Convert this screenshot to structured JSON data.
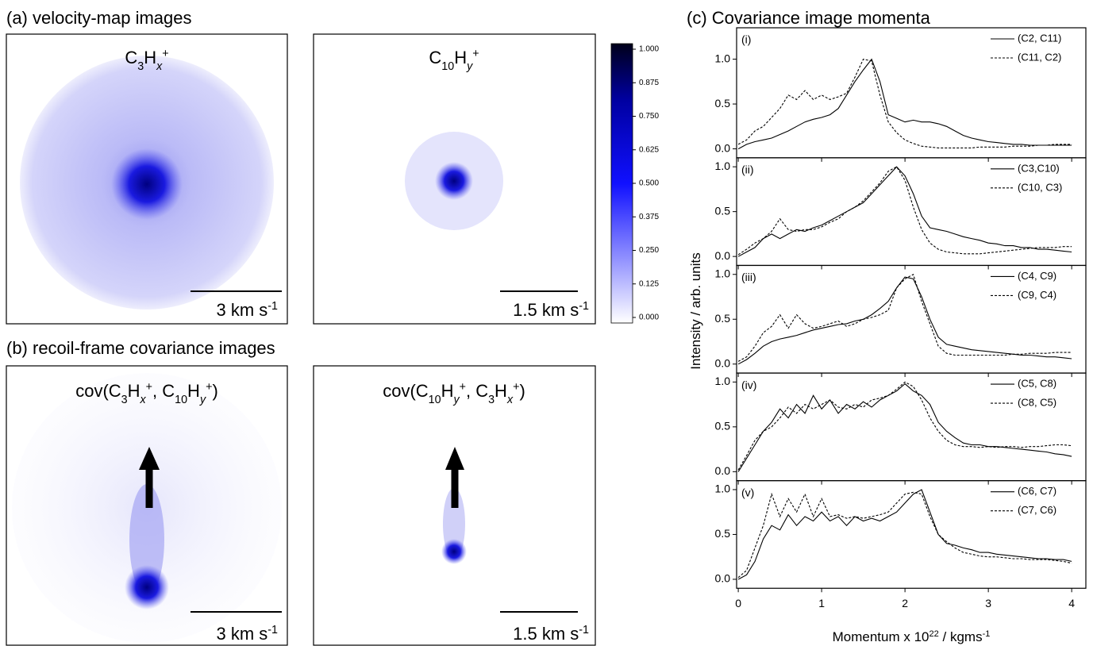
{
  "panel_a": {
    "title": "(a) velocity-map images",
    "images": [
      {
        "label": [
          "C",
          "3",
          "H",
          "x",
          "+"
        ],
        "scale_bar": [
          "3 km s",
          "-1"
        ]
      },
      {
        "label": [
          "C",
          "10",
          "H",
          "y",
          "+"
        ],
        "scale_bar": [
          "1.5 km s",
          "-1"
        ]
      }
    ]
  },
  "colorbar": {
    "lim": [
      0,
      1
    ],
    "ticks": [
      {
        "value": 0,
        "label": "0.000"
      },
      {
        "value": 0.125,
        "label": "0.125"
      },
      {
        "value": 0.25,
        "label": "0.250"
      },
      {
        "value": 0.375,
        "label": "0.375"
      },
      {
        "value": 0.5,
        "label": "0.500"
      },
      {
        "value": 0.625,
        "label": "0.625"
      },
      {
        "value": 0.75,
        "label": "0.750"
      },
      {
        "value": 0.875,
        "label": "0.875"
      },
      {
        "value": 1,
        "label": "1.000"
      }
    ]
  },
  "panel_b": {
    "title": "(b) recoil-frame covariance images",
    "images": [
      {
        "label": [
          "cov(C",
          "3",
          "H",
          "x",
          "+",
          ", C",
          "10",
          "H",
          "y",
          "+",
          ")"
        ],
        "scale_bar": [
          "3 km s",
          "-1"
        ]
      },
      {
        "label": [
          "cov(C",
          "10",
          "H",
          "y",
          "+",
          ", C",
          "3",
          "H",
          "x",
          "+",
          ")"
        ],
        "scale_bar": [
          "1.5 km s",
          "-1"
        ]
      }
    ]
  },
  "panel_c": {
    "title": "(c) Covariance image momenta",
    "ylabel": "Intensity / arb. units",
    "xlabel": [
      "Momentum x 10",
      "22",
      " / kgms",
      "-1"
    ]
  },
  "chart_data": [
    {
      "type": "line",
      "label": "(i)",
      "legend": "upper right",
      "xlim": [
        -0.02,
        4.17
      ],
      "ylim": [
        -0.1,
        1.35
      ],
      "xticks": [
        0,
        1,
        2,
        3,
        4
      ],
      "yticks": [
        {
          "value": 0,
          "label": "0.0"
        },
        {
          "value": 0.5,
          "label": "0.5"
        },
        {
          "value": 1,
          "label": "1.0"
        }
      ],
      "x": [
        0,
        0.1,
        0.2,
        0.3,
        0.4,
        0.5,
        0.6,
        0.7,
        0.8,
        0.9,
        1,
        1.1,
        1.2,
        1.3,
        1.4,
        1.5,
        1.6,
        1.7,
        1.8,
        1.9,
        2,
        2.1,
        2.2,
        2.3,
        2.4,
        2.5,
        2.6,
        2.7,
        2.8,
        2.9,
        3,
        3.1,
        3.2,
        3.3,
        3.4,
        3.5,
        3.6,
        3.7,
        3.8,
        3.9,
        4
      ],
      "series": [
        {
          "name": "(C2, C11)",
          "color": "#000000",
          "line_style": "solid",
          "values": [
            0,
            0.05,
            0.08,
            0.1,
            0.12,
            0.16,
            0.2,
            0.25,
            0.3,
            0.33,
            0.35,
            0.38,
            0.45,
            0.6,
            0.75,
            0.88,
            1,
            0.75,
            0.38,
            0.34,
            0.3,
            0.32,
            0.3,
            0.3,
            0.28,
            0.25,
            0.2,
            0.15,
            0.12,
            0.1,
            0.08,
            0.07,
            0.06,
            0.05,
            0.05,
            0.04,
            0.04,
            0.04,
            0.04,
            0.04,
            0.04
          ]
        },
        {
          "name": "(C11, C2)",
          "color": "#000000",
          "line_style": "dashed",
          "values": [
            0.05,
            0.1,
            0.2,
            0.25,
            0.35,
            0.45,
            0.6,
            0.55,
            0.65,
            0.55,
            0.6,
            0.55,
            0.58,
            0.62,
            0.8,
            1,
            0.98,
            0.6,
            0.3,
            0.18,
            0.1,
            0.06,
            0.03,
            0.02,
            0.01,
            0.01,
            0.01,
            0.01,
            0.01,
            0.02,
            0.02,
            0.02,
            0.02,
            0.03,
            0.03,
            0.03,
            0.04,
            0.04,
            0.05,
            0.05,
            0.05
          ]
        }
      ]
    },
    {
      "type": "line",
      "label": "(ii)",
      "legend": "upper right",
      "xlim": [
        -0.02,
        4.17
      ],
      "ylim": [
        -0.1,
        1.1
      ],
      "xticks": [
        0,
        1,
        2,
        3,
        4
      ],
      "yticks": [
        {
          "value": 0,
          "label": "0.0"
        },
        {
          "value": 0.5,
          "label": "0.5"
        },
        {
          "value": 1,
          "label": "1.0"
        }
      ],
      "x": [
        0,
        0.1,
        0.2,
        0.3,
        0.4,
        0.5,
        0.6,
        0.7,
        0.8,
        0.9,
        1,
        1.1,
        1.2,
        1.3,
        1.4,
        1.5,
        1.6,
        1.7,
        1.8,
        1.9,
        2,
        2.1,
        2.2,
        2.3,
        2.4,
        2.5,
        2.6,
        2.7,
        2.8,
        2.9,
        3,
        3.1,
        3.2,
        3.3,
        3.4,
        3.5,
        3.6,
        3.7,
        3.8,
        3.9,
        4
      ],
      "series": [
        {
          "name": "(C3,C10)",
          "color": "#000000",
          "line_style": "solid",
          "values": [
            0,
            0.05,
            0.1,
            0.2,
            0.25,
            0.2,
            0.25,
            0.3,
            0.28,
            0.32,
            0.35,
            0.4,
            0.45,
            0.5,
            0.55,
            0.6,
            0.7,
            0.8,
            0.9,
            1,
            0.9,
            0.7,
            0.45,
            0.32,
            0.3,
            0.28,
            0.25,
            0.22,
            0.2,
            0.18,
            0.15,
            0.14,
            0.12,
            0.12,
            0.1,
            0.1,
            0.08,
            0.08,
            0.07,
            0.06,
            0.05
          ]
        },
        {
          "name": "(C10, C3)",
          "color": "#000000",
          "line_style": "dashed",
          "values": [
            0.02,
            0.08,
            0.15,
            0.2,
            0.28,
            0.42,
            0.3,
            0.28,
            0.3,
            0.3,
            0.33,
            0.38,
            0.42,
            0.5,
            0.55,
            0.62,
            0.72,
            0.82,
            0.95,
            1,
            0.85,
            0.55,
            0.3,
            0.15,
            0.08,
            0.05,
            0.04,
            0.03,
            0.03,
            0.03,
            0.04,
            0.05,
            0.06,
            0.07,
            0.08,
            0.09,
            0.1,
            0.1,
            0.1,
            0.11,
            0.11
          ]
        }
      ]
    },
    {
      "type": "line",
      "label": "(iii)",
      "legend": "upper right",
      "xlim": [
        -0.02,
        4.17
      ],
      "ylim": [
        -0.1,
        1.1
      ],
      "xticks": [
        0,
        1,
        2,
        3,
        4
      ],
      "yticks": [
        {
          "value": 0,
          "label": "0.0"
        },
        {
          "value": 0.5,
          "label": "0.5"
        },
        {
          "value": 1,
          "label": "1.0"
        }
      ],
      "x": [
        0,
        0.1,
        0.2,
        0.3,
        0.4,
        0.5,
        0.6,
        0.7,
        0.8,
        0.9,
        1,
        1.1,
        1.2,
        1.3,
        1.4,
        1.5,
        1.6,
        1.7,
        1.8,
        1.9,
        2,
        2.1,
        2.2,
        2.3,
        2.4,
        2.5,
        2.6,
        2.7,
        2.8,
        2.9,
        3,
        3.1,
        3.2,
        3.3,
        3.4,
        3.5,
        3.6,
        3.7,
        3.8,
        3.9,
        4
      ],
      "series": [
        {
          "name": "(C4, C9)",
          "color": "#000000",
          "line_style": "solid",
          "values": [
            0,
            0.05,
            0.12,
            0.2,
            0.25,
            0.28,
            0.3,
            0.32,
            0.35,
            0.38,
            0.4,
            0.42,
            0.44,
            0.45,
            0.48,
            0.5,
            0.55,
            0.62,
            0.7,
            0.85,
            0.97,
            0.95,
            0.75,
            0.5,
            0.3,
            0.22,
            0.2,
            0.18,
            0.16,
            0.15,
            0.14,
            0.13,
            0.12,
            0.11,
            0.1,
            0.1,
            0.09,
            0.08,
            0.08,
            0.07,
            0.06
          ]
        },
        {
          "name": "(C9, C4)",
          "color": "#000000",
          "line_style": "dashed",
          "values": [
            0.03,
            0.08,
            0.2,
            0.35,
            0.42,
            0.55,
            0.4,
            0.55,
            0.45,
            0.4,
            0.42,
            0.45,
            0.48,
            0.42,
            0.45,
            0.5,
            0.52,
            0.55,
            0.6,
            0.85,
            0.95,
            1,
            0.7,
            0.45,
            0.2,
            0.12,
            0.1,
            0.1,
            0.1,
            0.1,
            0.1,
            0.1,
            0.1,
            0.11,
            0.11,
            0.12,
            0.12,
            0.12,
            0.13,
            0.13,
            0.13
          ]
        }
      ]
    },
    {
      "type": "line",
      "label": "(iv)",
      "legend": "upper right",
      "xlim": [
        -0.02,
        4.17
      ],
      "ylim": [
        -0.1,
        1.1
      ],
      "xticks": [
        0,
        1,
        2,
        3,
        4
      ],
      "yticks": [
        {
          "value": 0,
          "label": "0.0"
        },
        {
          "value": 0.5,
          "label": "0.5"
        },
        {
          "value": 1,
          "label": "1.0"
        }
      ],
      "x": [
        0,
        0.1,
        0.2,
        0.3,
        0.4,
        0.5,
        0.6,
        0.7,
        0.8,
        0.9,
        1,
        1.1,
        1.2,
        1.3,
        1.4,
        1.5,
        1.6,
        1.7,
        1.8,
        1.9,
        2,
        2.1,
        2.2,
        2.3,
        2.4,
        2.5,
        2.6,
        2.7,
        2.8,
        2.9,
        3,
        3.1,
        3.2,
        3.3,
        3.4,
        3.5,
        3.6,
        3.7,
        3.8,
        3.9,
        4
      ],
      "series": [
        {
          "name": "(C5, C8)",
          "color": "#000000",
          "line_style": "solid",
          "values": [
            0,
            0.15,
            0.3,
            0.45,
            0.55,
            0.7,
            0.6,
            0.75,
            0.65,
            0.85,
            0.7,
            0.8,
            0.65,
            0.75,
            0.7,
            0.78,
            0.72,
            0.8,
            0.85,
            0.9,
            0.98,
            0.9,
            0.85,
            0.75,
            0.55,
            0.45,
            0.38,
            0.32,
            0.3,
            0.3,
            0.28,
            0.28,
            0.27,
            0.26,
            0.25,
            0.24,
            0.23,
            0.22,
            0.2,
            0.19,
            0.17
          ]
        },
        {
          "name": "(C8, C5)",
          "color": "#000000",
          "line_style": "dashed",
          "values": [
            0.02,
            0.18,
            0.35,
            0.45,
            0.5,
            0.6,
            0.72,
            0.65,
            0.75,
            0.7,
            0.75,
            0.8,
            0.72,
            0.7,
            0.75,
            0.72,
            0.8,
            0.82,
            0.85,
            0.92,
            1,
            0.95,
            0.8,
            0.6,
            0.45,
            0.35,
            0.3,
            0.28,
            0.28,
            0.27,
            0.28,
            0.27,
            0.28,
            0.28,
            0.27,
            0.28,
            0.28,
            0.29,
            0.3,
            0.3,
            0.29
          ]
        }
      ]
    },
    {
      "type": "line",
      "label": "(v)",
      "legend": "upper right",
      "xlim": [
        -0.02,
        4.17
      ],
      "ylim": [
        -0.1,
        1.1
      ],
      "xticks": [
        0,
        1,
        2,
        3,
        4
      ],
      "yticks": [
        {
          "value": 0,
          "label": "0.0"
        },
        {
          "value": 0.5,
          "label": "0.5"
        },
        {
          "value": 1,
          "label": "1.0"
        }
      ],
      "x": [
        0,
        0.1,
        0.2,
        0.3,
        0.4,
        0.5,
        0.6,
        0.7,
        0.8,
        0.9,
        1,
        1.1,
        1.2,
        1.3,
        1.4,
        1.5,
        1.6,
        1.7,
        1.8,
        1.9,
        2,
        2.1,
        2.2,
        2.3,
        2.4,
        2.5,
        2.6,
        2.7,
        2.8,
        2.9,
        3,
        3.1,
        3.2,
        3.3,
        3.4,
        3.5,
        3.6,
        3.7,
        3.8,
        3.9,
        4
      ],
      "series": [
        {
          "name": "(C6, C7)",
          "color": "#000000",
          "line_style": "solid",
          "values": [
            0,
            0.05,
            0.2,
            0.45,
            0.6,
            0.55,
            0.72,
            0.6,
            0.7,
            0.65,
            0.75,
            0.65,
            0.7,
            0.6,
            0.7,
            0.65,
            0.68,
            0.65,
            0.7,
            0.75,
            0.85,
            0.95,
            1,
            0.75,
            0.5,
            0.4,
            0.38,
            0.35,
            0.33,
            0.3,
            0.3,
            0.28,
            0.27,
            0.26,
            0.25,
            0.24,
            0.23,
            0.23,
            0.22,
            0.22,
            0.2
          ]
        },
        {
          "name": "(C7, C6)",
          "color": "#000000",
          "line_style": "dashed",
          "values": [
            0.02,
            0.1,
            0.35,
            0.6,
            0.95,
            0.7,
            0.9,
            0.75,
            0.95,
            0.7,
            0.9,
            0.7,
            0.72,
            0.68,
            0.7,
            0.68,
            0.7,
            0.72,
            0.75,
            0.85,
            0.95,
            0.97,
            0.95,
            0.7,
            0.5,
            0.42,
            0.35,
            0.3,
            0.28,
            0.26,
            0.25,
            0.25,
            0.24,
            0.23,
            0.23,
            0.22,
            0.22,
            0.22,
            0.21,
            0.2,
            0.18
          ]
        }
      ]
    }
  ]
}
